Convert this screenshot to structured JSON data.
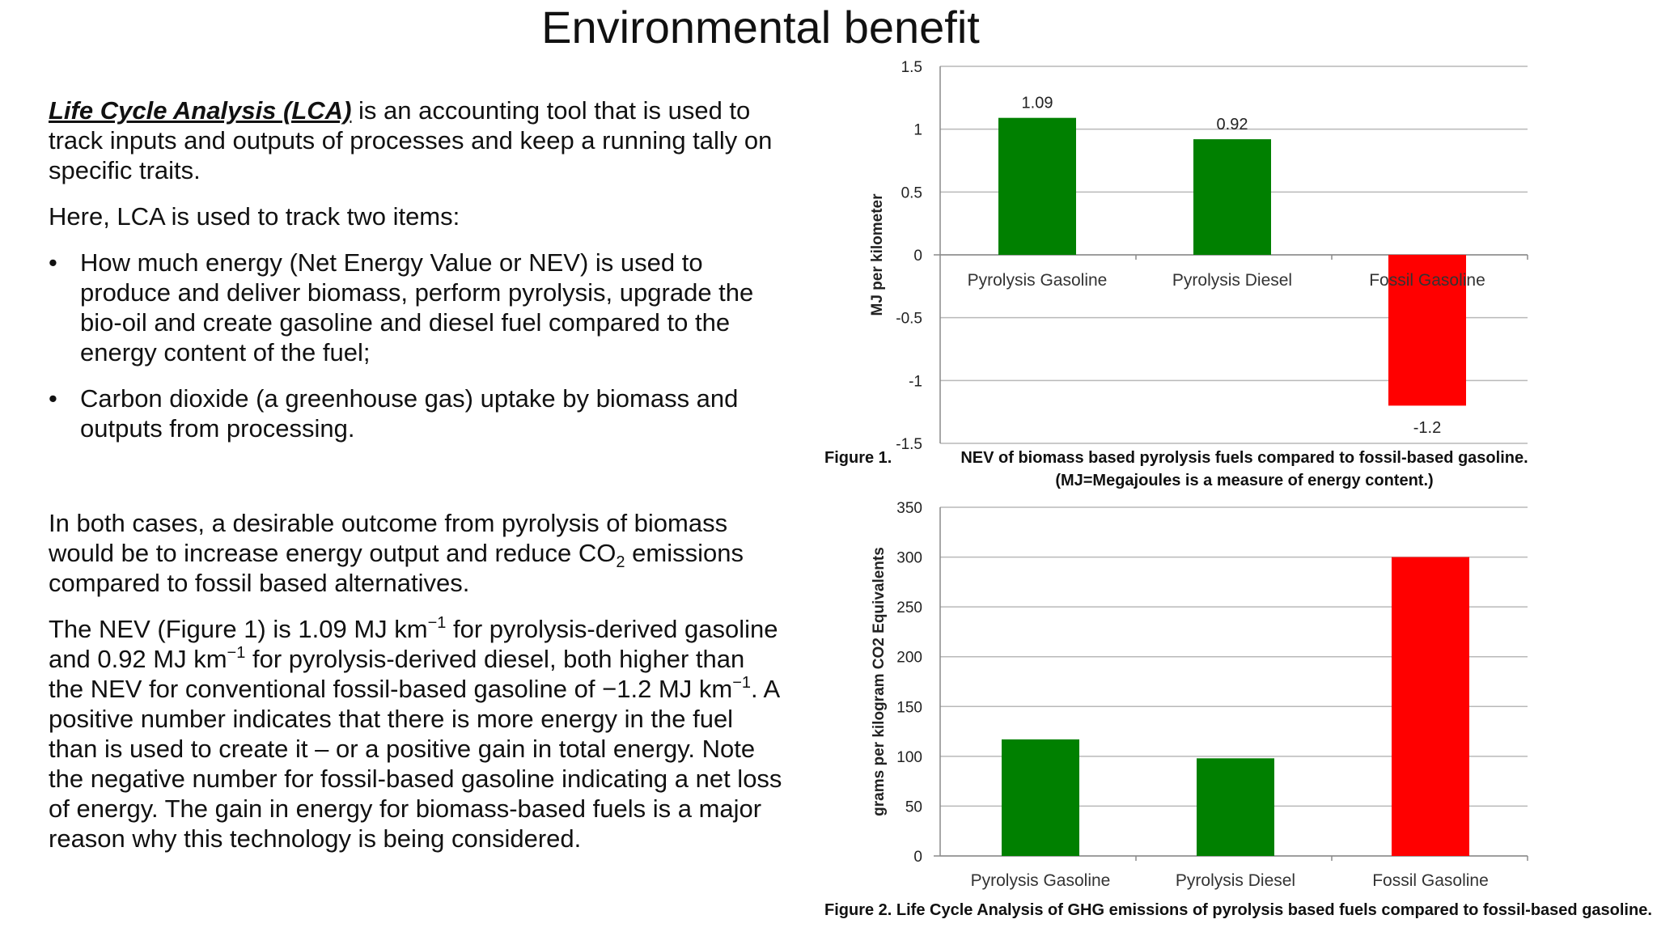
{
  "slide": {
    "title": "Environmental benefit"
  },
  "text": {
    "p1_term": "Life Cycle Analysis (LCA)",
    "p1_rest": " is an accounting tool that is used to track inputs and outputs of processes and keep a running tally on specific traits.",
    "p2": "Here, LCA is used to track two items:",
    "bullet_marker": "•",
    "bullets": [
      "How much energy (Net Energy Value or NEV) is used to produce and deliver biomass, perform pyrolysis, upgrade the bio-oil and create gasoline and diesel fuel compared to the energy content of the fuel;",
      "Carbon dioxide (a greenhouse gas) uptake by biomass and outputs from processing."
    ],
    "p3_a": "In both cases, a desirable outcome from pyrolysis of biomass would be to increase energy output and reduce CO",
    "p3_sub": "2",
    "p3_b": " emissions compared to fossil based alternatives.",
    "p4_a": "The NEV (Figure 1) is 1.09 MJ km",
    "p4_sup1": "−1",
    "p4_b": " for pyrolysis-derived gasoline and 0.92 MJ km",
    "p4_sup2": "−1",
    "p4_c": " for pyrolysis-derived diesel, both higher than the NEV for conventional fossil-based gasoline of −1.2 MJ km",
    "p4_sup3": "−1",
    "p4_d": ". A positive number indicates that there is more energy in the fuel than is used to create it – or a positive gain in total energy. Note the negative number for fossil-based gasoline indicating a net loss of energy. The gain in energy for biomass-based fuels is a major reason why this technology is being considered."
  },
  "chart_data": [
    {
      "type": "bar",
      "categories": [
        "Pyrolysis Gasoline",
        "Pyrolysis Diesel",
        "Fossil Gasoline"
      ],
      "values": [
        1.09,
        0.92,
        -1.2
      ],
      "data_labels": [
        "1.09",
        "0.92",
        "-1.2"
      ],
      "colors": [
        "#008000",
        "#008000",
        "#ff0000"
      ],
      "ylabel": "MJ per kilometer",
      "ylim": [
        -1.5,
        1.5
      ],
      "yticks": [
        1.5,
        1,
        0.5,
        0,
        -0.5,
        -1,
        -1.5
      ],
      "ytick_labels": [
        "1.5",
        "1",
        "0.5",
        "0",
        "-0.5",
        "-1",
        "-1.5"
      ],
      "grid": true,
      "caption_label": "Figure 1.",
      "caption_line1": "NEV of biomass based pyrolysis fuels compared to fossil-based gasoline.",
      "caption_line2": "(MJ=Megajoules is a measure of energy content.)"
    },
    {
      "type": "bar",
      "categories": [
        "Pyrolysis Gasoline",
        "Pyrolysis Diesel",
        "Fossil Gasoline"
      ],
      "values": [
        117,
        98,
        300
      ],
      "colors": [
        "#008000",
        "#008000",
        "#ff0000"
      ],
      "ylabel": "grams per kilogram CO2 Equivalents",
      "ylim": [
        0,
        350
      ],
      "yticks": [
        350,
        300,
        250,
        200,
        150,
        100,
        50,
        0
      ],
      "ytick_labels": [
        "350",
        "300",
        "250",
        "200",
        "150",
        "100",
        "50",
        "0"
      ],
      "grid": true,
      "caption": "Figure 2. Life Cycle Analysis of GHG emissions of pyrolysis based fuels compared to fossil-based gasoline."
    }
  ]
}
